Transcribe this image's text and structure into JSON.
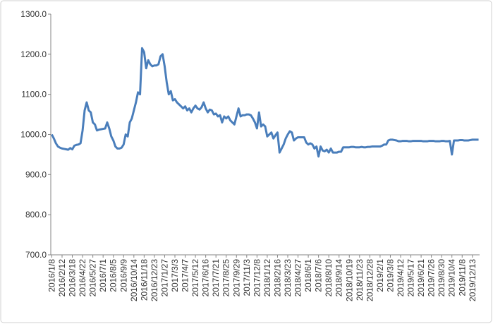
{
  "chart_data": {
    "type": "line",
    "categories": [
      "2016/1/8",
      null,
      null,
      null,
      null,
      "2016/2/12",
      null,
      null,
      null,
      null,
      "2016/3/18",
      null,
      null,
      null,
      null,
      "2016/4/22",
      null,
      null,
      null,
      null,
      "2016/5/27",
      null,
      null,
      null,
      null,
      "2016/7/1",
      null,
      null,
      null,
      null,
      "2016/8/5",
      null,
      null,
      null,
      null,
      "2016/9/9",
      null,
      null,
      null,
      null,
      "2016/10/14",
      null,
      null,
      null,
      null,
      "2016/11/18",
      null,
      null,
      null,
      null,
      "2016/12/23",
      null,
      null,
      null,
      null,
      "2017/1/27",
      null,
      null,
      null,
      null,
      "2017/3/3",
      null,
      null,
      null,
      null,
      "2017/4/7",
      null,
      null,
      null,
      null,
      "2017/5/12",
      null,
      null,
      null,
      null,
      "2017/6/16",
      null,
      null,
      null,
      null,
      "2017/7/21",
      null,
      null,
      null,
      null,
      "2017/8/25",
      null,
      null,
      null,
      null,
      "2017/9/29",
      null,
      null,
      null,
      null,
      "2017/11/3",
      null,
      null,
      null,
      null,
      "2017/12/8",
      null,
      null,
      null,
      null,
      "2018/1/12",
      null,
      null,
      null,
      null,
      "2018/2/16",
      null,
      null,
      null,
      null,
      "2018/3/23",
      null,
      null,
      null,
      null,
      "2018/4/27",
      null,
      null,
      null,
      null,
      "2018/6/1",
      null,
      null,
      null,
      null,
      "2018/7/6",
      null,
      null,
      null,
      null,
      "2018/8/10",
      null,
      null,
      null,
      null,
      "2018/9/14",
      null,
      null,
      null,
      null,
      "2018/10/19",
      null,
      null,
      null,
      null,
      "2018/11/23",
      null,
      null,
      null,
      null,
      "2018/12/28",
      null,
      null,
      null,
      null,
      "2019/2/1",
      null,
      null,
      null,
      null,
      "2019/3/8",
      null,
      null,
      null,
      null,
      "2019/4/12",
      null,
      null,
      null,
      null,
      "2019/5/17",
      null,
      null,
      null,
      null,
      "2019/6/21",
      null,
      null,
      null,
      null,
      "2019/7/26",
      null,
      null,
      null,
      null,
      "2019/8/30",
      null,
      null,
      null,
      null,
      "2019/10/4",
      null,
      null,
      null,
      null,
      "2019/11/8",
      null,
      null,
      null,
      null,
      "2019/12/13",
      null,
      null,
      null
    ],
    "values": [
      1000,
      990,
      978,
      970,
      967,
      965,
      964,
      963,
      962,
      966,
      963,
      972,
      974,
      975,
      978,
      1010,
      1060,
      1080,
      1060,
      1055,
      1030,
      1025,
      1010,
      1012,
      1013,
      1014,
      1015,
      1030,
      1015,
      995,
      985,
      970,
      965,
      965,
      967,
      975,
      1000,
      995,
      1030,
      1040,
      1060,
      1080,
      1105,
      1100,
      1215,
      1205,
      1165,
      1185,
      1175,
      1170,
      1172,
      1172,
      1175,
      1195,
      1200,
      1170,
      1130,
      1100,
      1108,
      1085,
      1088,
      1080,
      1075,
      1070,
      1065,
      1070,
      1060,
      1065,
      1055,
      1065,
      1072,
      1065,
      1062,
      1068,
      1080,
      1065,
      1055,
      1062,
      1060,
      1050,
      1052,
      1045,
      1048,
      1030,
      1045,
      1040,
      1045,
      1035,
      1030,
      1025,
      1045,
      1065,
      1045,
      1048,
      1048,
      1050,
      1050,
      1048,
      1040,
      1030,
      1015,
      1055,
      1020,
      1025,
      1020,
      995,
      1000,
      1005,
      990,
      998,
      1005,
      955,
      965,
      975,
      990,
      1000,
      1008,
      1005,
      985,
      990,
      993,
      993,
      993,
      993,
      980,
      975,
      978,
      975,
      965,
      970,
      945,
      970,
      960,
      958,
      962,
      955,
      965,
      955,
      955,
      955,
      957,
      957,
      968,
      968,
      968,
      968,
      969,
      969,
      968,
      968,
      968,
      969,
      968,
      968,
      969,
      969,
      970,
      970,
      970,
      970,
      970,
      972,
      975,
      975,
      985,
      987,
      987,
      986,
      985,
      983,
      983,
      984,
      984,
      984,
      983,
      983,
      984,
      984,
      984,
      984,
      984,
      983,
      983,
      983,
      984,
      984,
      984,
      983,
      983,
      983,
      984,
      984,
      983,
      983,
      984,
      950,
      985,
      985,
      985,
      986,
      986,
      985,
      985,
      985,
      986,
      987,
      987,
      987,
      987
    ],
    "color": "#4a7ebb",
    "ylim": [
      700,
      1300
    ],
    "yticks": [
      {
        "value": 700,
        "label": "700.0"
      },
      {
        "value": 800,
        "label": "800.0"
      },
      {
        "value": 900,
        "label": "900.0"
      },
      {
        "value": 1000,
        "label": "1000.0"
      },
      {
        "value": 1100,
        "label": "1100.0"
      },
      {
        "value": 1200,
        "label": "1200.0"
      },
      {
        "value": 1300,
        "label": "1300.0"
      }
    ],
    "grid": false
  }
}
